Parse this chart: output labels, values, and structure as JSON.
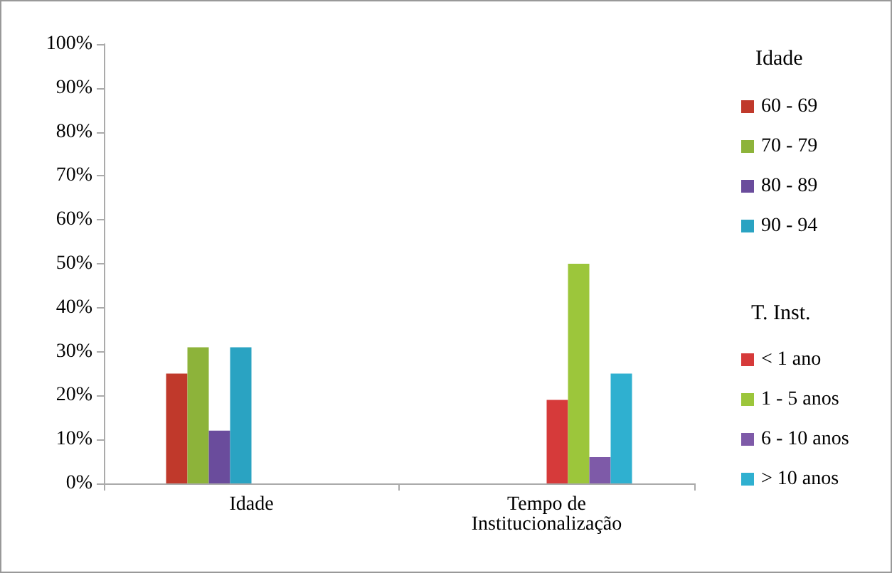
{
  "chart_data": {
    "type": "bar",
    "categories": [
      "Idade",
      "Tempo de\nInstitucionalização"
    ],
    "series": [
      {
        "name": "60 - 69",
        "color": "#c0392b",
        "values": [
          25,
          null
        ]
      },
      {
        "name": "70 - 79",
        "color": "#8db33a",
        "values": [
          31,
          null
        ]
      },
      {
        "name": "80 - 89",
        "color": "#6a4c9c",
        "values": [
          12,
          null
        ]
      },
      {
        "name": "90 - 94",
        "color": "#2aa3c2",
        "values": [
          31,
          null
        ]
      },
      {
        "name": "< 1 ano",
        "color": "#d63a3a",
        "values": [
          null,
          19
        ]
      },
      {
        "name": "1 - 5 anos",
        "color": "#9cc63b",
        "values": [
          null,
          50
        ]
      },
      {
        "name": "6 - 10 anos",
        "color": "#7e5aa8",
        "values": [
          null,
          6
        ]
      },
      {
        "name": "> 10 anos",
        "color": "#2fb0d0",
        "values": [
          null,
          25
        ]
      }
    ],
    "ylim": [
      0,
      100
    ],
    "yticks": [
      {
        "value": 0,
        "label": "0%"
      },
      {
        "value": 10,
        "label": "10%"
      },
      {
        "value": 20,
        "label": "20%"
      },
      {
        "value": 30,
        "label": "30%"
      },
      {
        "value": 40,
        "label": "40%"
      },
      {
        "value": 50,
        "label": "50%"
      },
      {
        "value": 60,
        "label": "60%"
      },
      {
        "value": 70,
        "label": "70%"
      },
      {
        "value": 80,
        "label": "80%"
      },
      {
        "value": 90,
        "label": "90%"
      },
      {
        "value": 100,
        "label": "100%"
      }
    ],
    "grid": false,
    "legend": "right",
    "legend_title": "Idade",
    "annotations": [
      "T. Inst."
    ]
  }
}
